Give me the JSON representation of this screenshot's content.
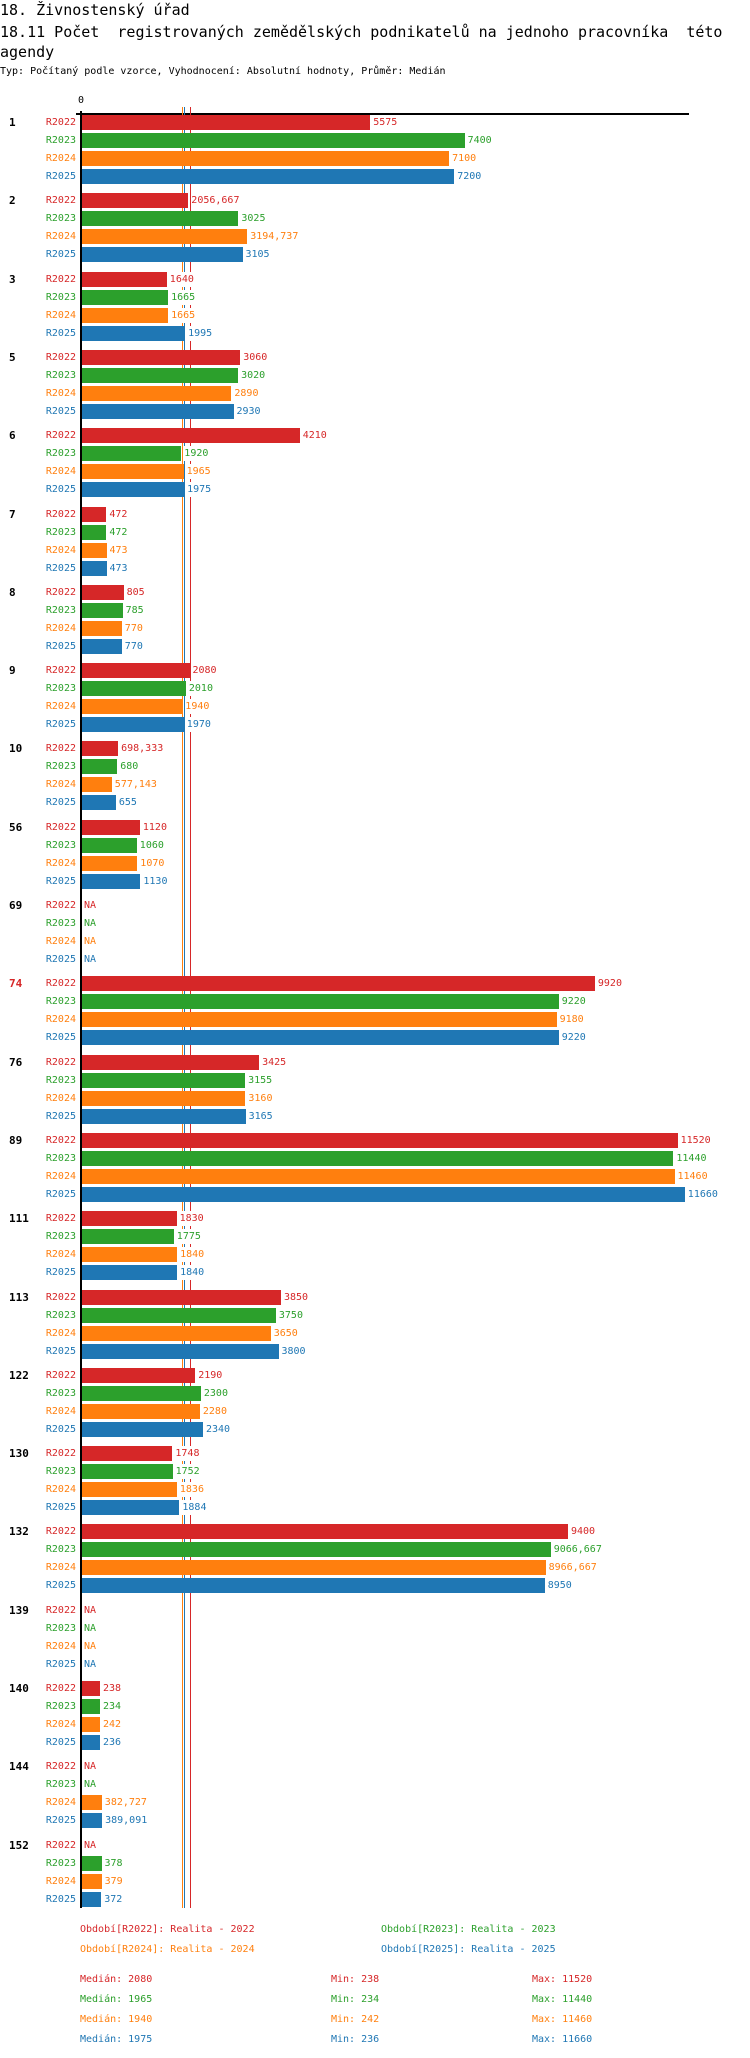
{
  "header": {
    "title": "18. Živnostenský úřad",
    "subtitle_line1": "18.11 Počet  registrovaných zemědělských podnikatelů na jednoho pracovníka  této",
    "subtitle_line2": "agendy",
    "meta": "Typ: Počítaný podle vzorce, Vyhodnocení: Absolutní hodnoty, Průměr: Medián"
  },
  "chart_data": {
    "type": "bar",
    "orientation": "horizontal",
    "x_tick_label": "0",
    "series_names": [
      "R2022",
      "R2023",
      "R2024",
      "R2025"
    ],
    "colors": [
      "#d62728",
      "#2ca02c",
      "#ff7f0e",
      "#1f77b4"
    ],
    "highlight_color": "#d62728",
    "medians": [
      2080,
      1965,
      1940,
      1975
    ],
    "groups": [
      {
        "id": "1",
        "values": [
          "5575",
          "7400",
          "7100",
          "7200"
        ]
      },
      {
        "id": "2",
        "values": [
          "2056,667",
          "3025",
          "3194,737",
          "3105"
        ]
      },
      {
        "id": "3",
        "values": [
          "1640",
          "1665",
          "1665",
          "1995"
        ]
      },
      {
        "id": "5",
        "values": [
          "3060",
          "3020",
          "2890",
          "2930"
        ]
      },
      {
        "id": "6",
        "values": [
          "4210",
          "1920",
          "1965",
          "1975"
        ]
      },
      {
        "id": "7",
        "values": [
          "472",
          "472",
          "473",
          "473"
        ]
      },
      {
        "id": "8",
        "values": [
          "805",
          "785",
          "770",
          "770"
        ]
      },
      {
        "id": "9",
        "values": [
          "2080",
          "2010",
          "1940",
          "1970"
        ]
      },
      {
        "id": "10",
        "values": [
          "698,333",
          "680",
          "577,143",
          "655"
        ]
      },
      {
        "id": "56",
        "values": [
          "1120",
          "1060",
          "1070",
          "1130"
        ]
      },
      {
        "id": "69",
        "values": [
          "NA",
          "NA",
          "NA",
          "NA"
        ]
      },
      {
        "id": "74",
        "highlight": true,
        "values": [
          "9920",
          "9220",
          "9180",
          "9220"
        ]
      },
      {
        "id": "76",
        "values": [
          "3425",
          "3155",
          "3160",
          "3165"
        ]
      },
      {
        "id": "89",
        "values": [
          "11520",
          "11440",
          "11460",
          "11660"
        ]
      },
      {
        "id": "111",
        "values": [
          "1830",
          "1775",
          "1840",
          "1840"
        ]
      },
      {
        "id": "113",
        "values": [
          "3850",
          "3750",
          "3650",
          "3800"
        ]
      },
      {
        "id": "122",
        "values": [
          "2190",
          "2300",
          "2280",
          "2340"
        ]
      },
      {
        "id": "130",
        "values": [
          "1748",
          "1752",
          "1836",
          "1884"
        ]
      },
      {
        "id": "132",
        "values": [
          "9400",
          "9066,667",
          "8966,667",
          "8950"
        ]
      },
      {
        "id": "139",
        "values": [
          "NA",
          "NA",
          "NA",
          "NA"
        ]
      },
      {
        "id": "140",
        "values": [
          "238",
          "234",
          "242",
          "236"
        ]
      },
      {
        "id": "144",
        "values": [
          "NA",
          "NA",
          "382,727",
          "389,091"
        ]
      },
      {
        "id": "152",
        "values": [
          "NA",
          "378",
          "379",
          "372"
        ]
      }
    ]
  },
  "legend": {
    "periods": [
      "Období[R2022]: Realita - 2022",
      "Období[R2023]: Realita - 2023",
      "Období[R2024]: Realita - 2024",
      "Období[R2025]: Realita - 2025"
    ],
    "stats": [
      {
        "median": "Medián: 2080",
        "min": "Min: 238",
        "max": "Max: 11520"
      },
      {
        "median": "Medián: 1965",
        "min": "Min: 234",
        "max": "Max: 11440"
      },
      {
        "median": "Medián: 1940",
        "min": "Min: 242",
        "max": "Max: 11460"
      },
      {
        "median": "Medián: 1975",
        "min": "Min: 236",
        "max": "Max: 11660"
      }
    ]
  }
}
